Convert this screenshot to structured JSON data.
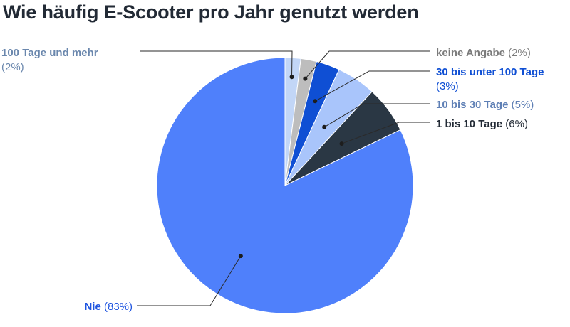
{
  "title": "Wie häufig E-Scooter pro Jahr genutzt werden",
  "chart_data": {
    "type": "pie",
    "title": "Wie häufig E-Scooter pro Jahr genutzt werden",
    "slices": [
      {
        "label": "100 Tage und mehr",
        "value": 2,
        "value_label": "(2%)",
        "color": "#c2d6f7"
      },
      {
        "label": "keine Angabe",
        "value": 2,
        "value_label": "(2%)",
        "color": "#bdbdbd"
      },
      {
        "label": "30 bis unter 100 Tage",
        "value": 3,
        "value_label": "(3%)",
        "color": "#0f4fd4"
      },
      {
        "label": "10 bis 30 Tage",
        "value": 5,
        "value_label": "(5%)",
        "color": "#a9c5fb"
      },
      {
        "label": "1 bis 10 Tage",
        "value": 6,
        "value_label": "(6%)",
        "color": "#2a3744"
      },
      {
        "label": "Nie",
        "value": 83,
        "value_label": "(83%)",
        "color": "#4f80fb"
      }
    ],
    "label_colors": [
      "#6a87ad",
      "#7b7b7b",
      "#0f4fd4",
      "#5e7fb5",
      "#222a35",
      "#1f55e0"
    ]
  }
}
